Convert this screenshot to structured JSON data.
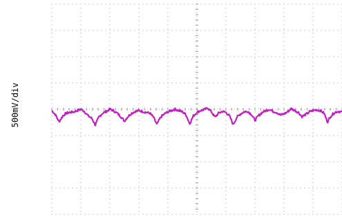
{
  "chart_data": {
    "type": "line",
    "title": "",
    "xlabel": "",
    "ylabel": "500mV/div",
    "grid": true,
    "grid_divisions": {
      "x": 10,
      "y": 8
    },
    "y_divisions_range": [
      -4,
      4
    ],
    "x_divisions_range": [
      0,
      10
    ],
    "series": [
      {
        "color": "#c020c0",
        "x": [
          0.0,
          0.12,
          0.25,
          0.38,
          0.5,
          0.62,
          0.75,
          0.88,
          1.0,
          1.12,
          1.25,
          1.38,
          1.5,
          1.62,
          1.75,
          1.88,
          2.0,
          2.12,
          2.25,
          2.38,
          2.5,
          2.62,
          2.75,
          2.88,
          3.0,
          3.12,
          3.25,
          3.38,
          3.5,
          3.62,
          3.75,
          3.88,
          4.0,
          4.12,
          4.25,
          4.38,
          4.5,
          4.62,
          4.75,
          4.88,
          5.0,
          5.12,
          5.25,
          5.38,
          5.5,
          5.62,
          5.75,
          5.88,
          6.0,
          6.12,
          6.25,
          6.38,
          6.5,
          6.62,
          6.75,
          6.88,
          7.0,
          7.12,
          7.25,
          7.38,
          7.5,
          7.62,
          7.75,
          7.88,
          8.0,
          8.12,
          8.25,
          8.38,
          8.5,
          8.62,
          8.75,
          8.88,
          9.0,
          9.12,
          9.25,
          9.38,
          9.5,
          9.62,
          9.75,
          9.88,
          10.0
        ],
        "values": [
          -0.05,
          -0.2,
          -0.48,
          -0.25,
          -0.15,
          -0.12,
          -0.1,
          -0.05,
          -0.0,
          -0.08,
          -0.25,
          -0.35,
          -0.6,
          -0.3,
          -0.15,
          -0.08,
          0.0,
          -0.05,
          -0.15,
          -0.28,
          -0.45,
          -0.28,
          -0.15,
          -0.08,
          -0.05,
          -0.08,
          -0.12,
          -0.15,
          -0.3,
          -0.58,
          -0.3,
          -0.18,
          -0.1,
          -0.05,
          0.0,
          -0.05,
          -0.1,
          -0.2,
          -0.55,
          -0.25,
          -0.12,
          -0.05,
          -0.02,
          0.05,
          -0.1,
          -0.3,
          -0.15,
          -0.08,
          -0.12,
          -0.25,
          -0.58,
          -0.3,
          -0.18,
          -0.1,
          -0.08,
          -0.2,
          -0.42,
          -0.25,
          -0.12,
          -0.05,
          -0.0,
          -0.08,
          -0.12,
          -0.22,
          -0.18,
          -0.1,
          0.02,
          -0.05,
          -0.12,
          -0.28,
          -0.2,
          -0.1,
          -0.05,
          -0.02,
          -0.05,
          -0.15,
          -0.48,
          -0.25,
          -0.12,
          -0.08,
          -0.1
        ]
      }
    ]
  }
}
